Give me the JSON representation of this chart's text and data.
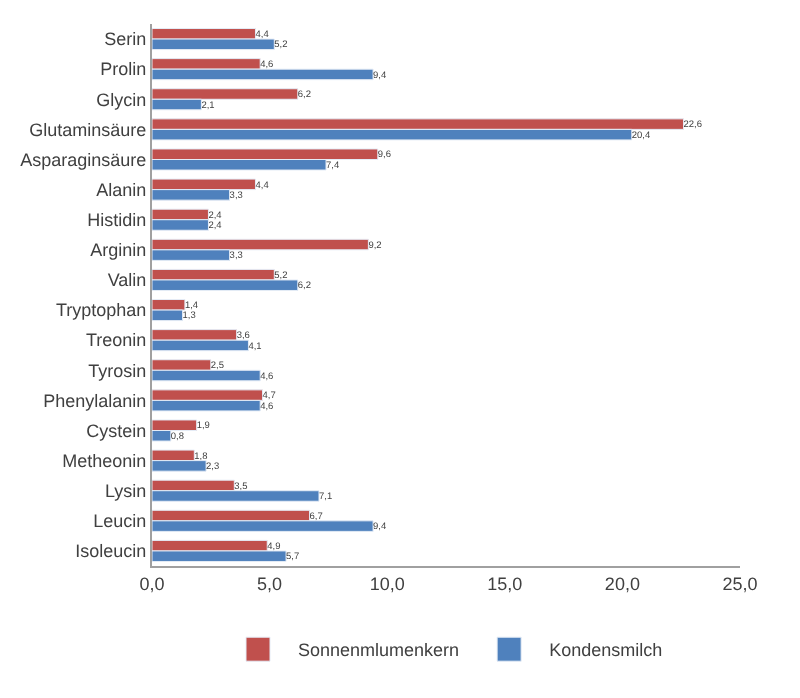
{
  "chart_data": {
    "type": "bar",
    "orientation": "horizontal",
    "categories": [
      "Serin",
      "Prolin",
      "Glycin",
      "Glutaminsäure",
      "Asparaginsäure",
      "Alanin",
      "Histidin",
      "Arginin",
      "Valin",
      "Tryptophan",
      "Treonin",
      "Tyrosin",
      "Phenylalanin",
      "Cystein",
      "Metheonin",
      "Lysin",
      "Leucin",
      "Isoleucin"
    ],
    "series": [
      {
        "name": "Sonnenmlumenkern",
        "color": "#c0504d",
        "values": [
          4.4,
          4.6,
          6.2,
          22.6,
          9.6,
          4.4,
          2.4,
          9.2,
          5.2,
          1.4,
          3.6,
          2.5,
          4.7,
          1.9,
          1.8,
          3.5,
          6.7,
          4.9
        ],
        "value_labels": [
          "4,4",
          "4,6",
          "6,2",
          "22,6",
          "9,6",
          "4,4",
          "2,4",
          "9,2",
          "5,2",
          "1,4",
          "3,6",
          "2,5",
          "4,7",
          "1,9",
          "1,8",
          "3,5",
          "6,7",
          "4,9"
        ]
      },
      {
        "name": "Kondensmilch",
        "color": "#4f81bd",
        "values": [
          5.2,
          9.4,
          2.1,
          20.4,
          7.4,
          3.3,
          2.4,
          3.3,
          6.2,
          1.3,
          4.1,
          4.6,
          4.6,
          0.8,
          2.3,
          7.1,
          9.4,
          5.7
        ],
        "value_labels": [
          "5,2",
          "9,4",
          "2,1",
          "20,4",
          "7,4",
          "3,3",
          "2,4",
          "3,3",
          "6,2",
          "1,3",
          "4,1",
          "4,6",
          "4,6",
          "0,8",
          "2,3",
          "7,1",
          "9,4",
          "5,7"
        ]
      }
    ],
    "xlim": [
      0,
      25
    ],
    "xticks": [
      {
        "value": 0,
        "label": "0,0"
      },
      {
        "value": 5,
        "label": "5,0"
      },
      {
        "value": 10,
        "label": "10,0"
      },
      {
        "value": 15,
        "label": "15,0"
      },
      {
        "value": 20,
        "label": "20,0"
      },
      {
        "value": 25,
        "label": "25,0"
      }
    ],
    "grid": false,
    "legend": "bottom"
  }
}
